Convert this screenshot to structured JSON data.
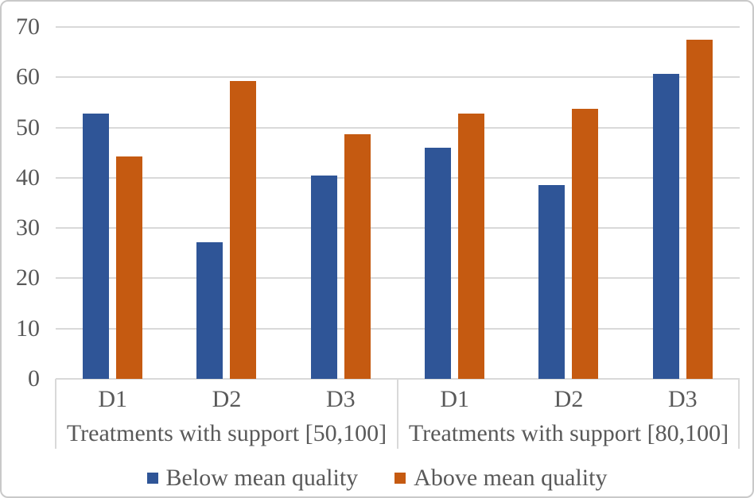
{
  "figure": {
    "background": "#ffffff",
    "border_color": "#c9c9c9"
  },
  "colors": {
    "below_mean": "#2F5597",
    "above_mean": "#C55A11",
    "gridline": "#d9d9d9",
    "label_text": "#595959"
  },
  "chart_data": {
    "type": "bar",
    "title": "",
    "xlabel": "",
    "ylabel": "",
    "ylim": [
      0,
      70
    ],
    "yticks": [
      0,
      10,
      20,
      30,
      40,
      50,
      60,
      70
    ],
    "grid": true,
    "legend_position": "bottom",
    "group_axis": [
      {
        "label": "Treatments with support [50,100]",
        "categories": [
          "D1",
          "D2",
          "D3"
        ]
      },
      {
        "label": "Treatments with support [80,100]",
        "categories": [
          "D1",
          "D2",
          "D3"
        ]
      }
    ],
    "series": [
      {
        "name": "Below mean quality",
        "color": "#2F5597",
        "values": [
          [
            52.7,
            27.2,
            40.4
          ],
          [
            46.0,
            38.6,
            60.7
          ]
        ]
      },
      {
        "name": "Above mean quality",
        "color": "#C55A11",
        "values": [
          [
            44.2,
            59.3,
            48.6
          ],
          [
            52.7,
            53.7,
            67.5
          ]
        ]
      }
    ]
  }
}
